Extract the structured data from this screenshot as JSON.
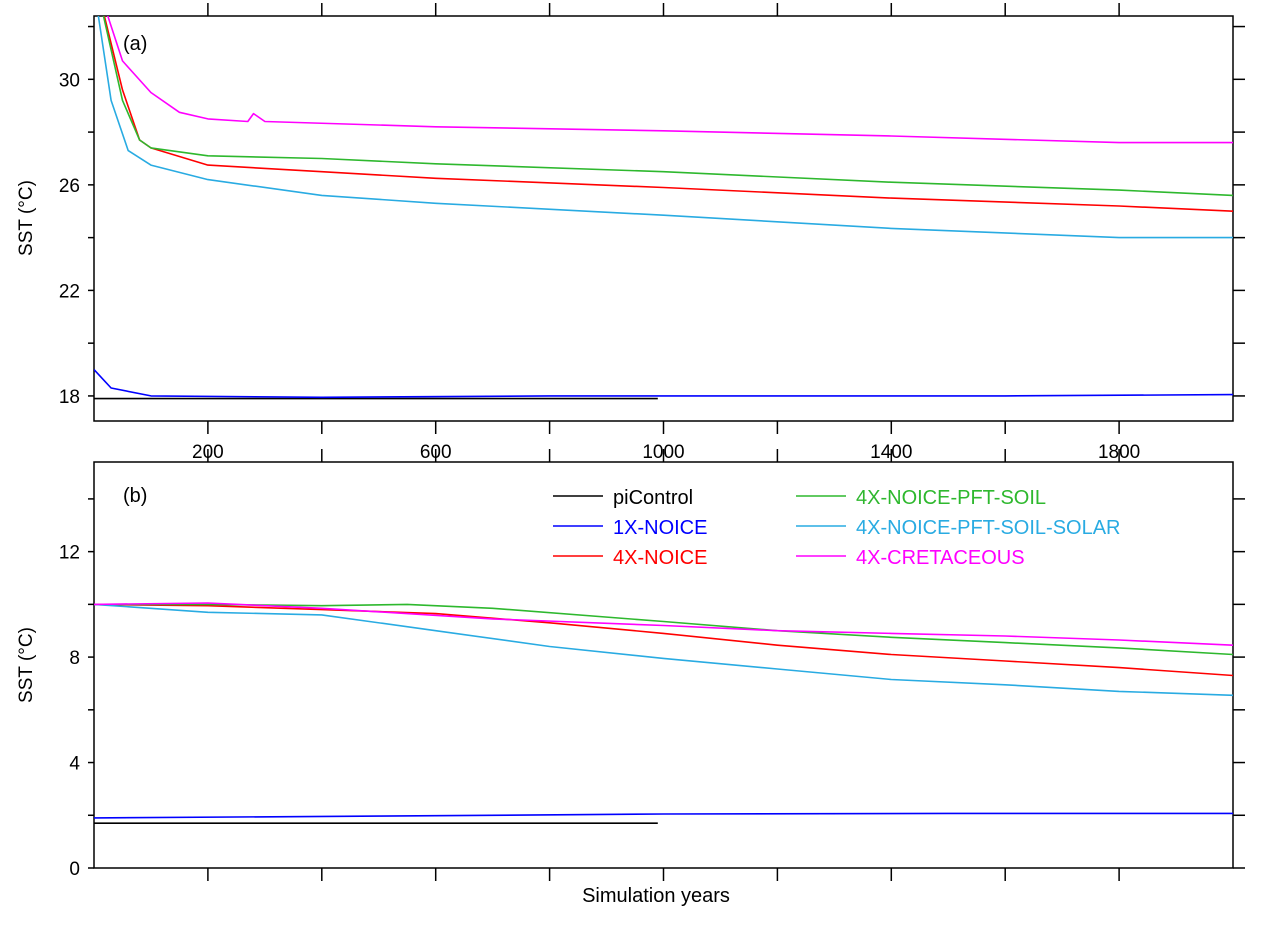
{
  "chart_data": [
    {
      "type": "line",
      "panel_label": "(a)",
      "ylabel": "SST (°C)",
      "xlabel": "",
      "xlim": [
        0,
        2000
      ],
      "ylim": [
        17.05,
        32.4
      ],
      "xticks": [
        200,
        600,
        1000,
        1400,
        1800
      ],
      "yticks": [
        18,
        22,
        26,
        30
      ],
      "series": [
        {
          "name": "piControl",
          "color": "#000000",
          "x": [
            0,
            200,
            400,
            600,
            800,
            990
          ],
          "y": [
            17.9,
            17.9,
            17.9,
            17.9,
            17.9,
            17.9
          ]
        },
        {
          "name": "1X-NOICE",
          "color": "#0000ff",
          "x": [
            0,
            30,
            100,
            400,
            800,
            1200,
            1600,
            2000
          ],
          "y": [
            19.0,
            18.3,
            18.0,
            17.95,
            18.0,
            18.0,
            18.0,
            18.05
          ]
        },
        {
          "name": "4X-NOICE",
          "color": "#ff0000",
          "x": [
            0,
            50,
            80,
            100,
            200,
            400,
            600,
            1000,
            1400,
            1800,
            2000
          ],
          "y": [
            34,
            29.6,
            27.7,
            27.4,
            26.75,
            26.5,
            26.25,
            25.9,
            25.5,
            25.2,
            25.0
          ]
        },
        {
          "name": "4X-NOICE-PFT-SOIL",
          "color": "#2eb82e",
          "x": [
            0,
            50,
            80,
            100,
            200,
            400,
            600,
            1000,
            1400,
            1800,
            2000
          ],
          "y": [
            34,
            29.2,
            27.7,
            27.4,
            27.1,
            27.0,
            26.8,
            26.5,
            26.1,
            25.8,
            25.6
          ]
        },
        {
          "name": "4X-NOICE-PFT-SOIL-SOLAR",
          "color": "#29abe2",
          "x": [
            0,
            30,
            60,
            100,
            200,
            400,
            600,
            1000,
            1400,
            1800,
            2000
          ],
          "y": [
            33.5,
            29.2,
            27.3,
            26.75,
            26.2,
            25.6,
            25.3,
            24.85,
            24.35,
            24.0,
            24.0
          ]
        },
        {
          "name": "4X-CRETACEOUS",
          "color": "#ff00ff",
          "x": [
            0,
            50,
            100,
            150,
            200,
            270,
            280,
            300,
            600,
            1000,
            1400,
            1800,
            2000
          ],
          "y": [
            34,
            30.7,
            29.5,
            28.75,
            28.5,
            28.4,
            28.7,
            28.4,
            28.2,
            28.05,
            27.85,
            27.6,
            27.6
          ]
        }
      ]
    },
    {
      "type": "line",
      "panel_label": "(b)",
      "ylabel": "SST (°C)",
      "xlabel": "Simulation years",
      "xlim": [
        0,
        2000
      ],
      "ylim": [
        0,
        15.4
      ],
      "xticks": [],
      "yticks": [
        0,
        4,
        8,
        12
      ],
      "legend_position": "top-right",
      "series": [
        {
          "name": "piControl",
          "color": "#000000",
          "x": [
            0,
            990
          ],
          "y": [
            1.7,
            1.7
          ]
        },
        {
          "name": "1X-NOICE",
          "color": "#0000ff",
          "x": [
            0,
            500,
            1000,
            1500,
            2000
          ],
          "y": [
            1.9,
            1.97,
            2.05,
            2.07,
            2.07
          ]
        },
        {
          "name": "4X-NOICE",
          "color": "#ff0000",
          "x": [
            0,
            200,
            400,
            600,
            800,
            1000,
            1200,
            1400,
            1600,
            1800,
            2000
          ],
          "y": [
            10,
            9.95,
            9.8,
            9.65,
            9.3,
            8.9,
            8.45,
            8.1,
            7.85,
            7.6,
            7.3
          ]
        },
        {
          "name": "4X-NOICE-PFT-SOIL",
          "color": "#2eb82e",
          "x": [
            0,
            200,
            400,
            550,
            700,
            1000,
            1200,
            1400,
            1600,
            1800,
            2000
          ],
          "y": [
            10,
            10.0,
            9.95,
            10.0,
            9.85,
            9.35,
            9.0,
            8.75,
            8.55,
            8.35,
            8.1
          ]
        },
        {
          "name": "4X-NOICE-PFT-SOIL-SOLAR",
          "color": "#29abe2",
          "x": [
            0,
            200,
            400,
            600,
            800,
            1000,
            1200,
            1400,
            1600,
            1800,
            2000
          ],
          "y": [
            10,
            9.7,
            9.6,
            9.0,
            8.4,
            7.95,
            7.55,
            7.15,
            6.95,
            6.7,
            6.55
          ]
        },
        {
          "name": "4X-CRETACEOUS",
          "color": "#ff00ff",
          "x": [
            0,
            200,
            400,
            700,
            1000,
            1200,
            1400,
            1600,
            1800,
            2000
          ],
          "y": [
            10,
            10.05,
            9.85,
            9.45,
            9.2,
            9.0,
            8.9,
            8.8,
            8.65,
            8.45
          ]
        }
      ]
    }
  ]
}
